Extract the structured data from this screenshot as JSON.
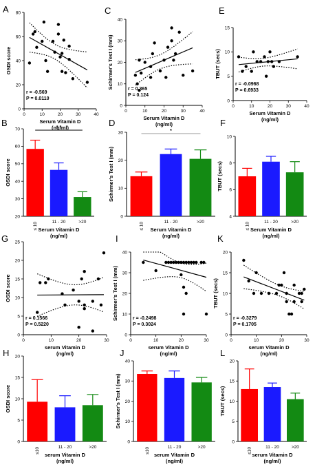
{
  "chart_data": [
    {
      "panel": "A",
      "type": "scatter",
      "xlabel": "Serum Vitamin D",
      "xunit": "(ng/ml)",
      "ylabel": "OSDI score",
      "xlim": [
        0,
        40
      ],
      "ylim": [
        0,
        80
      ],
      "xticks": [
        0,
        10,
        20,
        30,
        40
      ],
      "yticks": [
        0,
        20,
        40,
        60,
        80
      ],
      "points": [
        [
          3,
          38
        ],
        [
          5,
          62
        ],
        [
          6,
          64
        ],
        [
          7,
          51
        ],
        [
          10,
          56
        ],
        [
          11,
          72
        ],
        [
          12,
          40
        ],
        [
          13,
          31
        ],
        [
          16,
          56
        ],
        [
          17,
          47
        ],
        [
          19,
          62
        ],
        [
          19,
          70
        ],
        [
          20,
          43
        ],
        [
          21,
          46
        ],
        [
          21,
          31
        ],
        [
          22,
          57
        ],
        [
          23,
          30
        ],
        [
          25,
          41
        ],
        [
          25,
          52
        ],
        [
          27,
          25
        ],
        [
          35,
          22
        ]
      ],
      "stats": [
        "r = -0.569",
        "P = 0.0110"
      ]
    },
    {
      "panel": "C",
      "type": "scatter",
      "xlabel": "Serum Vitamin D",
      "xunit": "(ng/ml)",
      "ylabel": "Schirmer's Test I (mm)",
      "xlim": [
        0,
        40
      ],
      "ylim": [
        0,
        40
      ],
      "xticks": [
        0,
        10,
        20,
        30,
        40
      ],
      "yticks": [
        0,
        10,
        20,
        30,
        40
      ],
      "points": [
        [
          5,
          14
        ],
        [
          6,
          10
        ],
        [
          7,
          7
        ],
        [
          7,
          21
        ],
        [
          8,
          15
        ],
        [
          10,
          20
        ],
        [
          13,
          18
        ],
        [
          13,
          13
        ],
        [
          14,
          24
        ],
        [
          15,
          29
        ],
        [
          18,
          16
        ],
        [
          20,
          21
        ],
        [
          21,
          13
        ],
        [
          22,
          27
        ],
        [
          24,
          36
        ],
        [
          24,
          30
        ],
        [
          25,
          21
        ],
        [
          26,
          24
        ],
        [
          28,
          34
        ],
        [
          30,
          14
        ],
        [
          35,
          16
        ]
      ],
      "stats": [
        "r = 0.365",
        "P = 0.124"
      ]
    },
    {
      "panel": "E",
      "type": "scatter",
      "xlabel": "Serum Vitamin D",
      "xunit": "(ng/ml)",
      "ylabel": "TBUT (secs)",
      "xlim": [
        0,
        40
      ],
      "ylim": [
        0,
        15
      ],
      "xticks": [
        0,
        10,
        20,
        30,
        40
      ],
      "yticks": [
        0,
        5,
        10,
        15
      ],
      "points": [
        [
          3,
          9
        ],
        [
          5,
          6
        ],
        [
          7,
          7
        ],
        [
          10,
          6
        ],
        [
          11,
          10
        ],
        [
          13,
          8
        ],
        [
          15,
          8
        ],
        [
          17,
          9
        ],
        [
          18,
          5
        ],
        [
          19,
          8
        ],
        [
          20,
          10
        ],
        [
          21,
          8
        ],
        [
          22,
          7
        ],
        [
          25,
          8
        ],
        [
          35,
          9
        ]
      ],
      "stats": [
        "r = -0.0968",
        "P = 0.6933"
      ]
    },
    {
      "panel": "B",
      "type": "bar",
      "xlabel": "Serum Vitamin D",
      "xunit": "(ng/ml)",
      "ylabel": "OSDI score",
      "categories": [
        "≤ 10",
        "11 - 20",
        ">20"
      ],
      "values": [
        58.5,
        46.5,
        31
      ],
      "errors": [
        5,
        4,
        3
      ],
      "colors": [
        "#ff0000",
        "#1a1aff",
        "#138a13"
      ],
      "ylim": [
        20,
        70
      ],
      "yticks": [
        20,
        30,
        40,
        50,
        60,
        70
      ],
      "significance": "* *"
    },
    {
      "panel": "D",
      "type": "bar",
      "xlabel": "Serum Vitamin D",
      "xunit": "(ng/ml)",
      "ylabel": "Schirmer's Test I (mm)",
      "categories": [
        "≤ 10",
        "11 - 20",
        ">20"
      ],
      "values": [
        14.3,
        22.2,
        20.5
      ],
      "errors": [
        1.5,
        1.8,
        3.2
      ],
      "colors": [
        "#ff0000",
        "#1a1aff",
        "#138a13"
      ],
      "ylim": [
        0,
        30
      ],
      "yticks": [
        0,
        10,
        20,
        30
      ],
      "significance": "*"
    },
    {
      "panel": "F",
      "type": "bar",
      "xlabel": "Serum Vitamin D",
      "xunit": "(ng/ml)",
      "ylabel": "TBUT (secs)",
      "categories": [
        "≤ 10",
        "11 - 20",
        ">20"
      ],
      "values": [
        7,
        8.1,
        7.3
      ],
      "errors": [
        0.6,
        0.4,
        0.8
      ],
      "colors": [
        "#ff0000",
        "#1a1aff",
        "#138a13"
      ],
      "ylim": [
        4,
        10
      ],
      "yticks": [
        4,
        6,
        8,
        10
      ],
      "significance": ""
    },
    {
      "panel": "G",
      "type": "scatter",
      "xlabel": "serum Vitamin D",
      "xunit": "(ng/ml)",
      "ylabel": "OSDI score",
      "xlim": [
        0,
        30
      ],
      "ylim": [
        0,
        25
      ],
      "xticks": [
        0,
        10,
        20,
        30
      ],
      "yticks": [
        0,
        5,
        10,
        15,
        20,
        25
      ],
      "points": [
        [
          5,
          6
        ],
        [
          6,
          14
        ],
        [
          8,
          14
        ],
        [
          9,
          15
        ],
        [
          14,
          11
        ],
        [
          15,
          8
        ],
        [
          18,
          12
        ],
        [
          20,
          2
        ],
        [
          20,
          9
        ],
        [
          21,
          15
        ],
        [
          22,
          7
        ],
        [
          22,
          8
        ],
        [
          22,
          17
        ],
        [
          25,
          1
        ],
        [
          25,
          9
        ],
        [
          27,
          15
        ],
        [
          28,
          8
        ],
        [
          29,
          22
        ]
      ],
      "stats": [
        "r = 0.1566",
        "P = 0.5220"
      ]
    },
    {
      "panel": "I",
      "type": "scatter",
      "xlabel": "serum Vitamin D",
      "xunit": "(ng/ml)",
      "ylabel": "Schirmer's Test I (mm)",
      "xlim": [
        0,
        30
      ],
      "ylim": [
        0,
        40
      ],
      "xticks": [
        0,
        10,
        20,
        30
      ],
      "yticks": [
        0,
        10,
        20,
        30,
        40
      ],
      "points": [
        [
          5,
          35
        ],
        [
          10,
          31
        ],
        [
          14,
          35
        ],
        [
          15,
          35
        ],
        [
          16,
          35
        ],
        [
          17,
          35
        ],
        [
          18,
          35
        ],
        [
          19,
          35
        ],
        [
          20,
          35
        ],
        [
          20,
          29
        ],
        [
          21,
          35
        ],
        [
          21,
          23
        ],
        [
          22,
          35
        ],
        [
          22,
          20
        ],
        [
          23,
          35
        ],
        [
          24,
          35
        ],
        [
          25,
          35
        ],
        [
          26,
          35
        ],
        [
          28,
          35
        ],
        [
          29,
          35
        ],
        [
          30,
          10
        ],
        [
          21,
          10
        ]
      ],
      "stats": [
        "r = -0.2498",
        "P = 0.3024"
      ]
    },
    {
      "panel": "K",
      "type": "scatter",
      "xlabel": "serum Vitamin D",
      "xunit": "(ng/ml)",
      "ylabel": "TBUT (secs)",
      "xlim": [
        0,
        30
      ],
      "ylim": [
        0,
        20
      ],
      "xticks": [
        0,
        10,
        20,
        30
      ],
      "yticks": [
        0,
        5,
        10,
        15,
        20
      ],
      "points": [
        [
          5,
          18
        ],
        [
          7,
          13
        ],
        [
          9,
          10
        ],
        [
          10,
          15
        ],
        [
          12,
          10
        ],
        [
          15,
          10
        ],
        [
          18,
          10
        ],
        [
          19,
          12
        ],
        [
          20,
          12
        ],
        [
          21,
          15
        ],
        [
          22,
          8
        ],
        [
          22,
          10
        ],
        [
          23,
          5
        ],
        [
          24,
          5
        ],
        [
          25,
          8
        ],
        [
          25,
          12
        ],
        [
          27,
          10
        ],
        [
          28,
          10
        ],
        [
          28,
          8
        ],
        [
          29,
          11
        ]
      ],
      "stats": [
        "r = -0.3279",
        "P = 0.1705"
      ]
    },
    {
      "panel": "H",
      "type": "bar",
      "xlabel": "serum Vitamin D",
      "xunit": "(ng/ml)",
      "ylabel": "OSDI score",
      "categories": [
        "≤10",
        "11 - 20",
        ">20"
      ],
      "values": [
        9.3,
        8.0,
        8.5
      ],
      "errors": [
        5.2,
        2.7,
        2.5
      ],
      "colors": [
        "#ff0000",
        "#1a1aff",
        "#138a13"
      ],
      "ylim": [
        0,
        20
      ],
      "yticks": [
        0,
        5,
        10,
        15,
        20
      ],
      "significance": ""
    },
    {
      "panel": "J",
      "type": "bar",
      "xlabel": "serum Vitamin D",
      "xunit": "(ng/ml)",
      "ylabel": "Schirmer's Test I (mm)",
      "categories": [
        "≤10",
        "11 - 20",
        ">20"
      ],
      "values": [
        33.5,
        31.5,
        29.3
      ],
      "errors": [
        1.5,
        3.5,
        2.5
      ],
      "colors": [
        "#ff0000",
        "#1a1aff",
        "#138a13"
      ],
      "ylim": [
        0,
        40
      ],
      "yticks": [
        0,
        10,
        20,
        30,
        40
      ],
      "significance": ""
    },
    {
      "panel": "L",
      "type": "bar",
      "xlabel": "serum Vitamin D",
      "xunit": "(ng/ml)",
      "ylabel": "TBUT (secs)",
      "categories": [
        "≤10",
        "11 - 20",
        ">20"
      ],
      "values": [
        13,
        13.5,
        10.5
      ],
      "errors": [
        5,
        1,
        1.5
      ],
      "colors": [
        "#ff0000",
        "#1a1aff",
        "#138a13"
      ],
      "ylim": [
        0,
        20
      ],
      "yticks": [
        0,
        5,
        10,
        15,
        20
      ],
      "significance": ""
    }
  ]
}
